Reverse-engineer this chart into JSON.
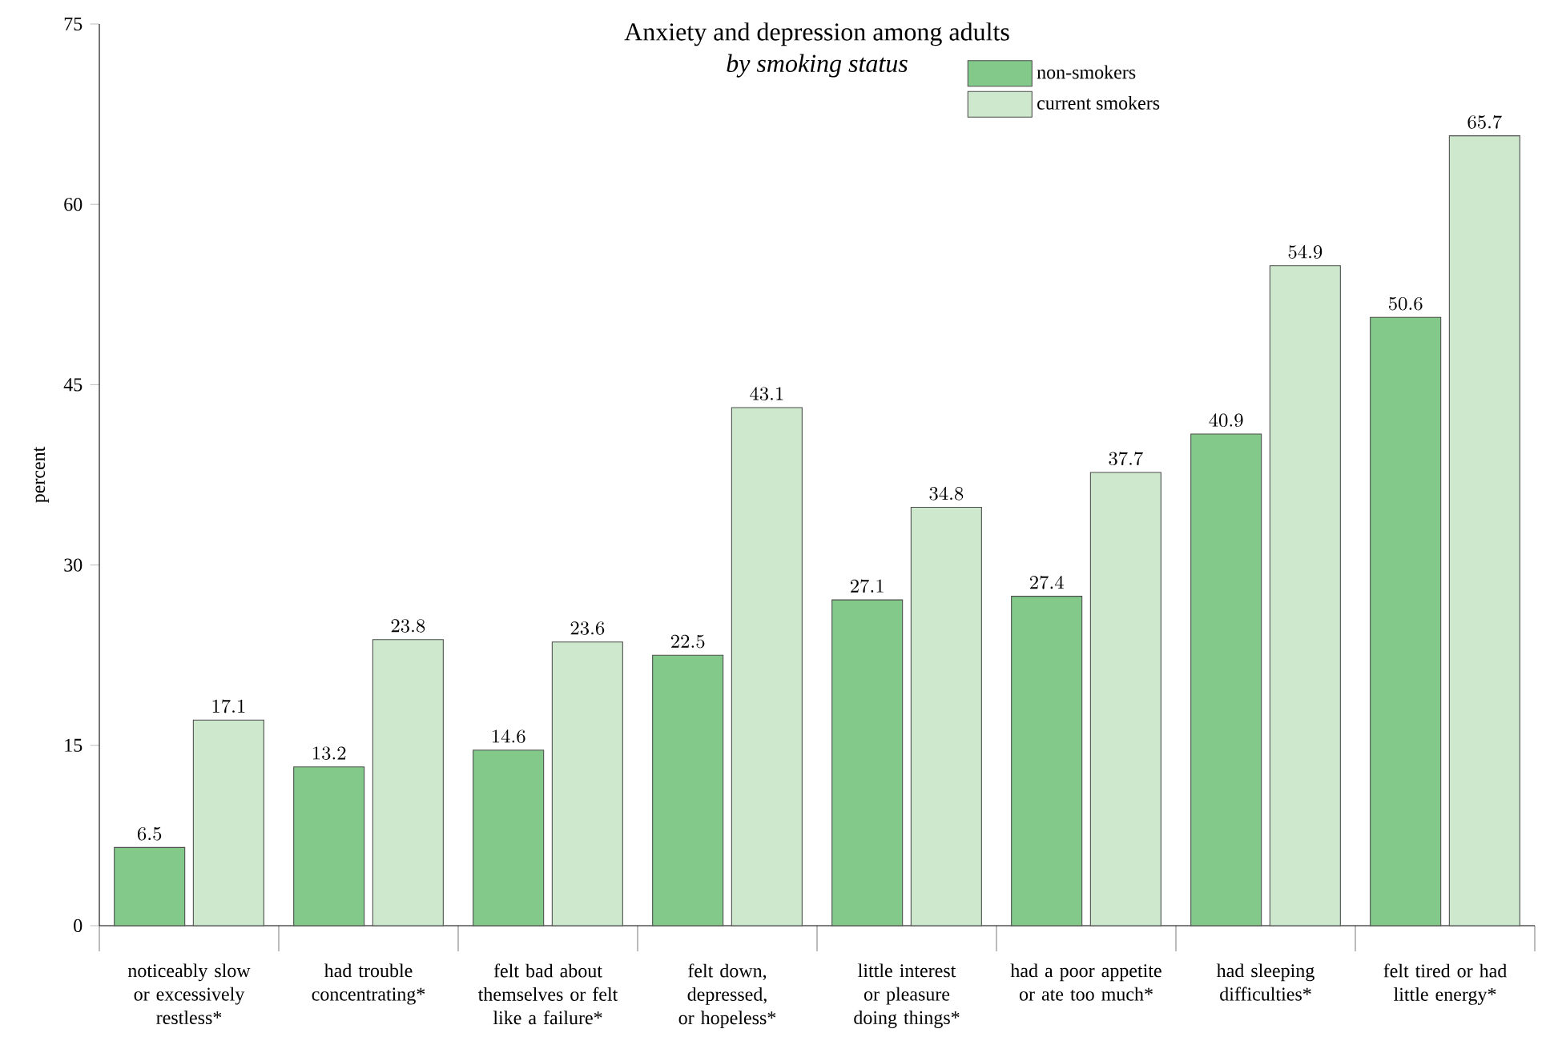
{
  "chart_data": {
    "type": "bar",
    "title": "Anxiety and depression among adults",
    "subtitle": "*by smoking status*",
    "ylabel": "percent",
    "categories": [
      "noticeably slow or excessively restless*",
      "had trouble concentrating*",
      "felt bad about themselves or felt like a failure*",
      "felt down, depressed, or hopeless*",
      "little interest or pleasure doing things*",
      "had a poor appetite or ate too much*",
      "had sleeping difficulties*",
      "felt tired or had little energy*"
    ],
    "series": [
      {
        "name": "non-smokers",
        "color": "#82c98a",
        "values": [
          6.5,
          13.2,
          14.6,
          22.5,
          27.1,
          27.4,
          40.9,
          50.6
        ]
      },
      {
        "name": "current smokers",
        "color": "#cde8cc",
        "values": [
          17.1,
          23.8,
          23.6,
          43.1,
          34.8,
          37.7,
          54.9,
          65.7
        ]
      }
    ],
    "ylim": [
      0,
      75
    ],
    "yticks": [
      0,
      15,
      30,
      45,
      60,
      75
    ],
    "data_labels": true,
    "legend": "top right",
    "grid": false
  }
}
